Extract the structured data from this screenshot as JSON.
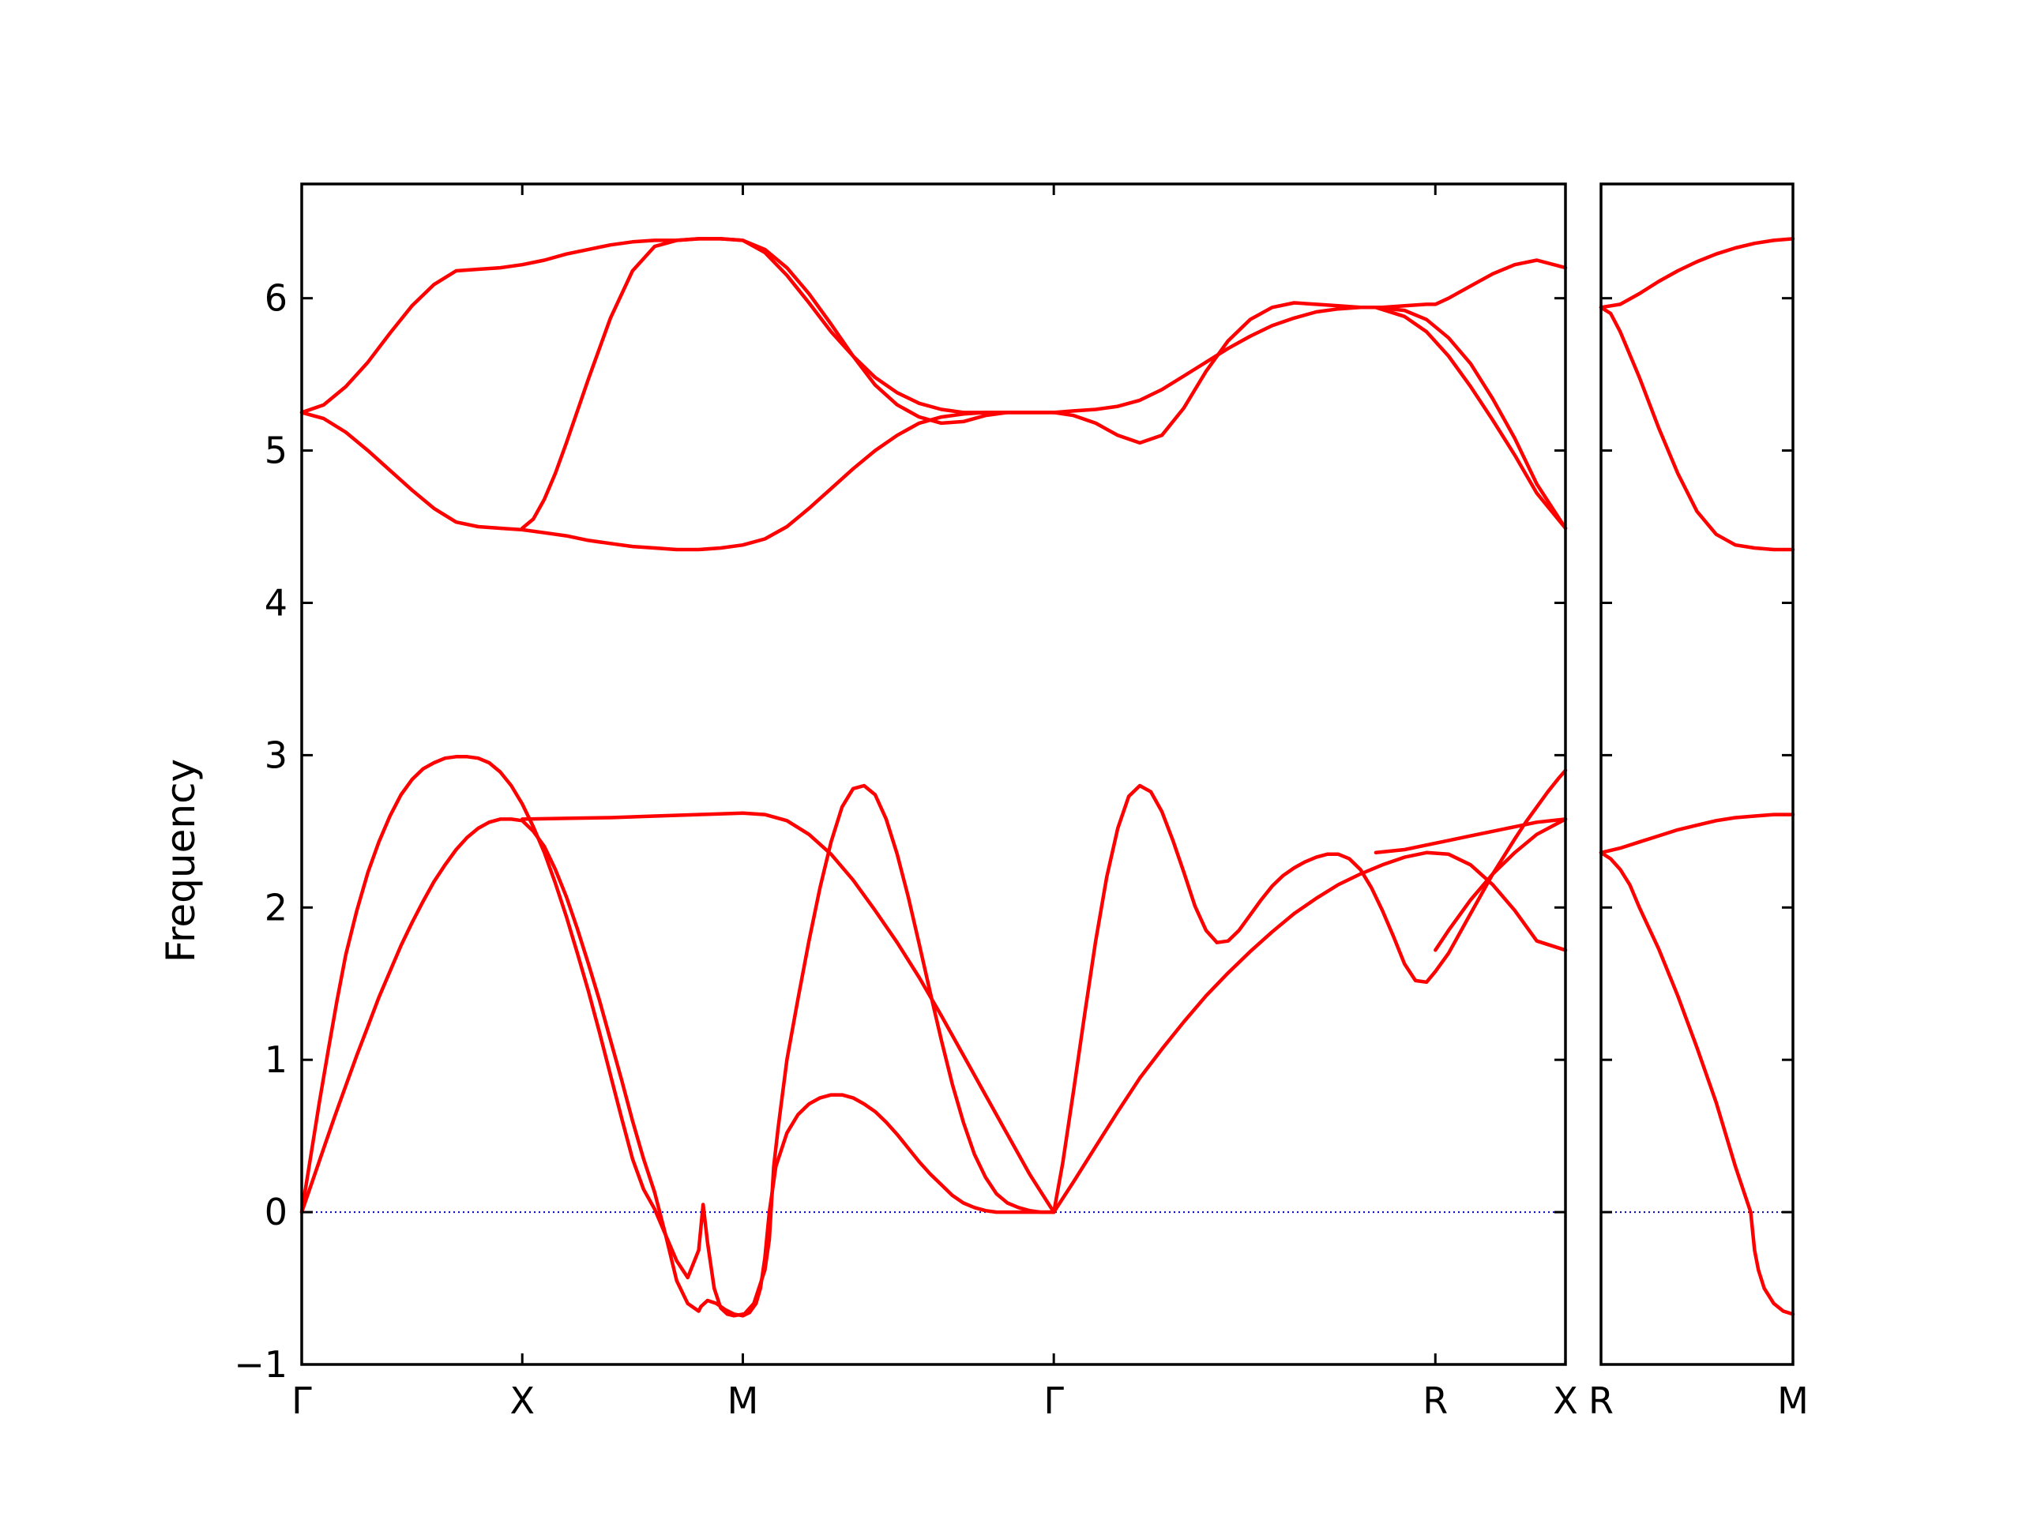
{
  "colors": {
    "band": "#ff0000",
    "zero_line": "#0000cc",
    "axis": "#000000"
  },
  "chart_data": [
    {
      "type": "line",
      "ylabel": "Frequency",
      "ylim": [
        -1,
        6.75
      ],
      "yticks": [
        -1,
        0,
        1,
        2,
        3,
        4,
        5,
        6
      ],
      "ytick_labels": [
        "−1",
        "0",
        "1",
        "2",
        "3",
        "4",
        "5",
        "6"
      ],
      "xlim": [
        0,
        5.73
      ],
      "xticks": [
        0,
        1,
        2,
        3.41,
        5.14,
        5.73
      ],
      "xtick_labels": [
        "Γ",
        "X",
        "M",
        "Γ",
        "R",
        "X"
      ],
      "grid": false,
      "zero_line": true,
      "series": [
        {
          "x": [
            0,
            0.04,
            0.08,
            0.12,
            0.16,
            0.2,
            0.25,
            0.3,
            0.35,
            0.4,
            0.45,
            0.5,
            0.55,
            0.6,
            0.65,
            0.7,
            0.75,
            0.8,
            0.85,
            0.9,
            0.95,
            1.0,
            1.05,
            1.1,
            1.15,
            1.2,
            1.25,
            1.3,
            1.35,
            1.4,
            1.45,
            1.5,
            1.55,
            1.6,
            1.65,
            1.7,
            1.75,
            1.8,
            1.81,
            1.82,
            1.84,
            1.87,
            1.9,
            1.93,
            1.96,
            2.0
          ],
          "y": [
            0,
            0.36,
            0.72,
            1.06,
            1.39,
            1.69,
            1.98,
            2.23,
            2.43,
            2.6,
            2.74,
            2.84,
            2.91,
            2.95,
            2.98,
            2.99,
            2.99,
            2.98,
            2.95,
            2.89,
            2.8,
            2.68,
            2.53,
            2.36,
            2.16,
            1.94,
            1.7,
            1.45,
            1.18,
            0.9,
            0.62,
            0.35,
            0.15,
            0.02,
            -0.15,
            -0.32,
            -0.43,
            -0.25,
            -0.1,
            0.05,
            -0.2,
            -0.5,
            -0.63,
            -0.67,
            -0.68,
            -0.67
          ]
        },
        {
          "x": [
            0,
            0.05,
            0.1,
            0.15,
            0.2,
            0.25,
            0.3,
            0.35,
            0.4,
            0.45,
            0.5,
            0.55,
            0.6,
            0.65,
            0.7,
            0.75,
            0.8,
            0.85,
            0.9,
            0.95,
            1.0,
            1.05,
            1.1,
            1.15,
            1.2,
            1.25,
            1.3,
            1.35,
            1.4,
            1.45,
            1.5,
            1.55,
            1.6,
            1.65,
            1.7,
            1.75,
            1.8,
            1.81,
            1.84,
            1.88,
            1.92,
            1.96,
            2.0
          ],
          "y": [
            0,
            0.21,
            0.42,
            0.63,
            0.83,
            1.03,
            1.22,
            1.41,
            1.58,
            1.75,
            1.9,
            2.04,
            2.17,
            2.28,
            2.38,
            2.46,
            2.52,
            2.56,
            2.58,
            2.58,
            2.57,
            2.5,
            2.4,
            2.25,
            2.07,
            1.86,
            1.63,
            1.39,
            1.13,
            0.87,
            0.6,
            0.35,
            0.13,
            -0.15,
            -0.45,
            -0.6,
            -0.65,
            -0.62,
            -0.58,
            -0.6,
            -0.64,
            -0.67,
            -0.68
          ]
        },
        {
          "x": [
            1.0,
            1.2,
            1.4,
            1.6,
            1.8,
            2.0,
            2.1,
            2.2,
            2.3,
            2.4,
            2.5,
            2.6,
            2.7,
            2.8,
            2.9,
            3.0,
            3.1,
            3.2,
            3.3,
            3.41
          ],
          "y": [
            2.58,
            2.585,
            2.59,
            2.6,
            2.61,
            2.62,
            2.61,
            2.57,
            2.48,
            2.35,
            2.18,
            1.98,
            1.77,
            1.54,
            1.29,
            1.03,
            0.77,
            0.51,
            0.25,
            0
          ]
        },
        {
          "x": [
            2.0,
            2.03,
            2.06,
            2.08,
            2.1,
            2.12,
            2.15,
            2.2,
            2.25,
            2.3,
            2.35,
            2.4,
            2.45,
            2.5,
            2.55,
            2.6,
            2.65,
            2.7,
            2.75,
            2.8,
            2.85,
            2.9,
            2.95,
            3.0,
            3.05,
            3.1,
            3.15,
            3.2,
            3.25,
            3.3,
            3.35,
            3.41
          ],
          "y": [
            -0.68,
            -0.66,
            -0.6,
            -0.5,
            -0.3,
            0.0,
            0.3,
            0.52,
            0.64,
            0.71,
            0.75,
            0.77,
            0.77,
            0.75,
            0.71,
            0.66,
            0.59,
            0.51,
            0.42,
            0.33,
            0.25,
            0.18,
            0.11,
            0.06,
            0.03,
            0.01,
            0.0,
            0.0,
            0.0,
            0.0,
            0.0,
            0.0
          ]
        },
        {
          "x": [
            2.0,
            2.05,
            2.1,
            2.12,
            2.14,
            2.16,
            2.2,
            2.25,
            2.3,
            2.35,
            2.4,
            2.45,
            2.5,
            2.55,
            2.6,
            2.65,
            2.7,
            2.75,
            2.8,
            2.85,
            2.9,
            2.95,
            3.0,
            3.05,
            3.1,
            3.15,
            3.2,
            3.25,
            3.3,
            3.35,
            3.41
          ],
          "y": [
            -0.68,
            -0.6,
            -0.38,
            -0.18,
            0.3,
            0.55,
            1.0,
            1.4,
            1.78,
            2.13,
            2.43,
            2.66,
            2.78,
            2.8,
            2.74,
            2.58,
            2.35,
            2.07,
            1.76,
            1.44,
            1.13,
            0.84,
            0.59,
            0.38,
            0.23,
            0.12,
            0.06,
            0.03,
            0.01,
            0.0,
            0.0
          ]
        },
        {
          "x": [
            3.41,
            3.45,
            3.5,
            3.55,
            3.6,
            3.65,
            3.7,
            3.75,
            3.8,
            3.85,
            3.9,
            3.95,
            4.0,
            4.05,
            4.1,
            4.15,
            4.2,
            4.25,
            4.3,
            4.35,
            4.4,
            4.45,
            4.5,
            4.55,
            4.6,
            4.65,
            4.7,
            4.75,
            4.8,
            4.85,
            4.9,
            4.95,
            5.0,
            5.05,
            5.1,
            5.14
          ],
          "y": [
            0,
            0.32,
            0.8,
            1.3,
            1.78,
            2.2,
            2.52,
            2.73,
            2.8,
            2.76,
            2.63,
            2.44,
            2.23,
            2.01,
            1.85,
            1.77,
            1.78,
            1.85,
            1.95,
            2.05,
            2.14,
            2.21,
            2.26,
            2.3,
            2.33,
            2.35,
            2.35,
            2.32,
            2.25,
            2.13,
            1.98,
            1.81,
            1.63,
            1.52,
            1.51,
            1.58
          ]
        },
        {
          "x": [
            3.41,
            3.5,
            3.6,
            3.7,
            3.8,
            3.9,
            4.0,
            4.1,
            4.2,
            4.3,
            4.4,
            4.5,
            4.6,
            4.7,
            4.8,
            4.9,
            5.0,
            5.1,
            5.2,
            5.3,
            5.4,
            5.5,
            5.6,
            5.73
          ],
          "y": [
            0,
            0.2,
            0.43,
            0.66,
            0.88,
            1.07,
            1.25,
            1.42,
            1.57,
            1.71,
            1.84,
            1.96,
            2.06,
            2.15,
            2.22,
            2.28,
            2.33,
            2.36,
            2.35,
            2.28,
            2.15,
            1.98,
            1.78,
            1.72
          ]
        },
        {
          "x": [
            5.14,
            5.2,
            5.3,
            5.4,
            5.5,
            5.55,
            5.6,
            5.65,
            5.7,
            5.73
          ],
          "y": [
            1.58,
            1.7,
            1.96,
            2.22,
            2.45,
            2.56,
            2.66,
            2.76,
            2.85,
            2.9
          ]
        },
        {
          "x": [
            5.14,
            5.2,
            5.3,
            5.4,
            5.5,
            5.6,
            5.73
          ],
          "y": [
            1.72,
            1.85,
            2.05,
            2.22,
            2.36,
            2.48,
            2.58
          ]
        },
        {
          "x": [
            4.87,
            5.0,
            5.1,
            5.2,
            5.3,
            5.4,
            5.5,
            5.6,
            5.73
          ],
          "y": [
            2.36,
            2.38,
            2.41,
            2.44,
            2.47,
            2.5,
            2.53,
            2.56,
            2.58
          ]
        },
        {
          "x": [
            0,
            0.1,
            0.2,
            0.3,
            0.4,
            0.5,
            0.6,
            0.7,
            0.8,
            0.9,
            1.0,
            1.1,
            1.2,
            1.3,
            1.4,
            1.5,
            1.6,
            1.7,
            1.8,
            1.9,
            2.0,
            2.1,
            2.2,
            2.3,
            2.4,
            2.5,
            2.6,
            2.7,
            2.8,
            2.9,
            3.0,
            3.1,
            3.2,
            3.3,
            3.41
          ],
          "y": [
            5.25,
            5.3,
            5.42,
            5.58,
            5.77,
            5.95,
            6.09,
            6.18,
            6.19,
            6.2,
            6.22,
            6.25,
            6.29,
            6.32,
            6.35,
            6.37,
            6.38,
            6.38,
            6.39,
            6.39,
            6.38,
            6.32,
            6.2,
            6.03,
            5.83,
            5.62,
            5.43,
            5.3,
            5.22,
            5.18,
            5.19,
            5.23,
            5.25,
            5.25,
            5.25
          ]
        },
        {
          "x": [
            0,
            0.1,
            0.2,
            0.3,
            0.4,
            0.5,
            0.6,
            0.7,
            0.8,
            0.9,
            1.0,
            1.1,
            1.2,
            1.3,
            1.4,
            1.5,
            1.6,
            1.7,
            1.8,
            1.9,
            2.0,
            2.1,
            2.2,
            2.3,
            2.4,
            2.5,
            2.6,
            2.7,
            2.8,
            2.9,
            3.0,
            3.1,
            3.2,
            3.3,
            3.41
          ],
          "y": [
            5.25,
            5.21,
            5.12,
            5.0,
            4.87,
            4.74,
            4.62,
            4.53,
            4.5,
            4.49,
            4.48,
            4.46,
            4.44,
            4.41,
            4.39,
            4.37,
            4.36,
            4.35,
            4.35,
            4.36,
            4.38,
            4.42,
            4.5,
            4.62,
            4.75,
            4.88,
            5.0,
            5.1,
            5.18,
            5.22,
            5.24,
            5.25,
            5.25,
            5.25,
            5.25
          ]
        },
        {
          "x": [
            1.0,
            1.05,
            1.1,
            1.15,
            1.2,
            1.3,
            1.4,
            1.5,
            1.6,
            1.7,
            1.8,
            1.9,
            2.0,
            2.1,
            2.2,
            2.3,
            2.4,
            2.5,
            2.6,
            2.7,
            2.8,
            2.9,
            3.0,
            3.1,
            3.2,
            3.3,
            3.41
          ],
          "y": [
            4.49,
            4.55,
            4.68,
            4.85,
            5.05,
            5.47,
            5.87,
            6.18,
            6.34,
            6.38,
            6.39,
            6.39,
            6.38,
            6.3,
            6.15,
            5.97,
            5.78,
            5.62,
            5.48,
            5.38,
            5.31,
            5.27,
            5.25,
            5.25,
            5.25,
            5.25,
            5.25
          ]
        },
        {
          "x": [
            3.41,
            3.5,
            3.6,
            3.7,
            3.8,
            3.9,
            4.0,
            4.1,
            4.2,
            4.3,
            4.4,
            4.5,
            4.6,
            4.7,
            4.8,
            4.9,
            5.0,
            5.1,
            5.14,
            5.2,
            5.3,
            5.4,
            5.5,
            5.6,
            5.73
          ],
          "y": [
            5.25,
            5.23,
            5.18,
            5.1,
            5.05,
            5.1,
            5.28,
            5.52,
            5.72,
            5.86,
            5.94,
            5.97,
            5.96,
            5.95,
            5.94,
            5.94,
            5.95,
            5.96,
            5.96,
            6.0,
            6.08,
            6.16,
            6.22,
            6.25,
            6.2
          ]
        },
        {
          "x": [
            3.41,
            3.5,
            3.6,
            3.7,
            3.8,
            3.9,
            4.0,
            4.1,
            4.2,
            4.3,
            4.4,
            4.5,
            4.6,
            4.7,
            4.8,
            4.87,
            5.0,
            5.1,
            5.2,
            5.3,
            5.4,
            5.5,
            5.6,
            5.73
          ],
          "y": [
            5.25,
            5.26,
            5.27,
            5.29,
            5.33,
            5.4,
            5.49,
            5.58,
            5.67,
            5.75,
            5.82,
            5.87,
            5.91,
            5.93,
            5.94,
            5.94,
            5.88,
            5.78,
            5.62,
            5.42,
            5.2,
            4.97,
            4.72,
            4.49
          ]
        },
        {
          "x": [
            4.87,
            5.0,
            5.1,
            5.2,
            5.3,
            5.4,
            5.5,
            5.6,
            5.73
          ],
          "y": [
            5.94,
            5.92,
            5.86,
            5.74,
            5.57,
            5.34,
            5.08,
            4.78,
            4.49
          ]
        }
      ]
    },
    {
      "type": "line",
      "ylim": [
        -1,
        6.75
      ],
      "xlim": [
        0,
        1
      ],
      "xticks": [
        0,
        1
      ],
      "xtick_labels": [
        "R",
        "M"
      ],
      "grid": false,
      "zero_line": true,
      "series": [
        {
          "x": [
            0,
            0.1,
            0.2,
            0.3,
            0.4,
            0.5,
            0.6,
            0.7,
            0.8,
            0.9,
            1.0
          ],
          "y": [
            5.94,
            5.96,
            6.03,
            6.11,
            6.18,
            6.24,
            6.29,
            6.33,
            6.36,
            6.38,
            6.39
          ]
        },
        {
          "x": [
            0,
            0.05,
            0.1,
            0.2,
            0.3,
            0.4,
            0.5,
            0.6,
            0.7,
            0.8,
            0.9,
            1.0
          ],
          "y": [
            5.94,
            5.9,
            5.78,
            5.48,
            5.15,
            4.85,
            4.6,
            4.45,
            4.38,
            4.36,
            4.35,
            4.35
          ]
        },
        {
          "x": [
            0,
            0.1,
            0.2,
            0.3,
            0.4,
            0.5,
            0.6,
            0.7,
            0.8,
            0.9,
            1.0
          ],
          "y": [
            2.36,
            2.39,
            2.43,
            2.47,
            2.51,
            2.54,
            2.57,
            2.59,
            2.6,
            2.61,
            2.61
          ]
        },
        {
          "x": [
            0,
            0.05,
            0.1,
            0.15,
            0.2,
            0.3,
            0.4,
            0.5,
            0.6,
            0.7,
            0.78,
            0.8,
            0.82,
            0.85,
            0.9,
            0.95,
            1.0
          ],
          "y": [
            2.36,
            2.32,
            2.25,
            2.15,
            2.0,
            1.73,
            1.42,
            1.08,
            0.72,
            0.3,
            0.0,
            -0.25,
            -0.38,
            -0.5,
            -0.6,
            -0.65,
            -0.67
          ]
        }
      ]
    }
  ]
}
